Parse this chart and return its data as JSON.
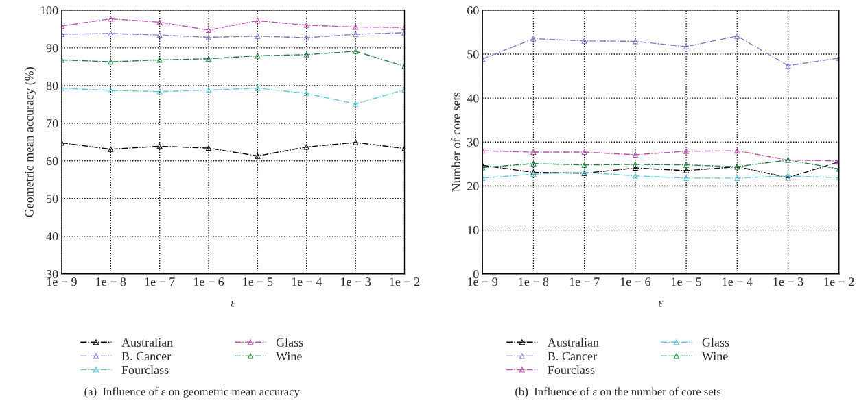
{
  "chart_data": [
    {
      "type": "line",
      "xlabel": "ε",
      "ylabel": "Geometric mean accuracy (%)",
      "categories": [
        "1e − 9",
        "1e − 8",
        "1e − 7",
        "1e − 6",
        "1e − 5",
        "1e − 4",
        "1e − 3",
        "1e − 2"
      ],
      "ylim": [
        30,
        100
      ],
      "yticks": [
        30,
        40,
        50,
        60,
        70,
        80,
        90,
        100
      ],
      "grid": true,
      "legend": "bottom",
      "marker": "triangle",
      "line_style": "dashed",
      "series": [
        {
          "name": "Australian",
          "color": "#000000",
          "values": [
            64.8,
            63.1,
            63.9,
            63.4,
            61.3,
            63.7,
            64.9,
            63.3
          ]
        },
        {
          "name": "B. Cancer",
          "color": "#7b7bc8",
          "values": [
            93.6,
            93.8,
            93.4,
            92.8,
            93.1,
            92.7,
            93.6,
            94.0
          ]
        },
        {
          "name": "Fourclass",
          "color": "#5fc8d8",
          "values": [
            79.3,
            78.7,
            78.4,
            78.8,
            79.3,
            77.9,
            75.1,
            78.9
          ]
        },
        {
          "name": "Glass",
          "color": "#c050b0",
          "values": [
            95.8,
            97.7,
            96.8,
            94.7,
            97.2,
            96.0,
            95.5,
            95.4
          ]
        },
        {
          "name": "Wine",
          "color": "#1e8040",
          "values": [
            86.8,
            86.3,
            86.8,
            87.1,
            87.9,
            88.2,
            89.1,
            85.1
          ]
        }
      ],
      "annotations": [
        "(a)  Influence of ε on geometric mean accuracy"
      ]
    },
    {
      "type": "line",
      "xlabel": "ε",
      "ylabel": "Number of core sets",
      "categories": [
        "1e − 9",
        "1e − 8",
        "1e − 7",
        "1e − 6",
        "1e − 5",
        "1e − 4",
        "1e − 3",
        "1e − 2"
      ],
      "ylim": [
        0,
        60
      ],
      "yticks": [
        0,
        10,
        20,
        30,
        40,
        50,
        60
      ],
      "grid": true,
      "legend": "bottom",
      "marker": "triangle",
      "line_style": "dashed",
      "series": [
        {
          "name": "Australian",
          "color": "#000000",
          "values": [
            24.7,
            23.1,
            22.9,
            24.1,
            23.5,
            24.4,
            21.9,
            25.5
          ]
        },
        {
          "name": "B. Cancer",
          "color": "#7b7bc8",
          "values": [
            48.9,
            53.5,
            53.0,
            52.9,
            51.7,
            54.1,
            47.4,
            49.1
          ]
        },
        {
          "name": "Fourclass",
          "color": "#c050b0",
          "values": [
            28.0,
            27.7,
            27.7,
            27.1,
            27.9,
            28.0,
            25.9,
            25.7
          ]
        },
        {
          "name": "Glass",
          "color": "#5fc8d8",
          "values": [
            21.8,
            22.7,
            23.1,
            22.3,
            21.8,
            21.8,
            22.3,
            21.9
          ]
        },
        {
          "name": "Wine",
          "color": "#1e8040",
          "values": [
            24.2,
            25.1,
            24.8,
            24.9,
            24.8,
            24.4,
            25.9,
            23.9
          ]
        }
      ],
      "annotations": [
        "(b)  Influence of ε on the number of core sets"
      ]
    }
  ]
}
